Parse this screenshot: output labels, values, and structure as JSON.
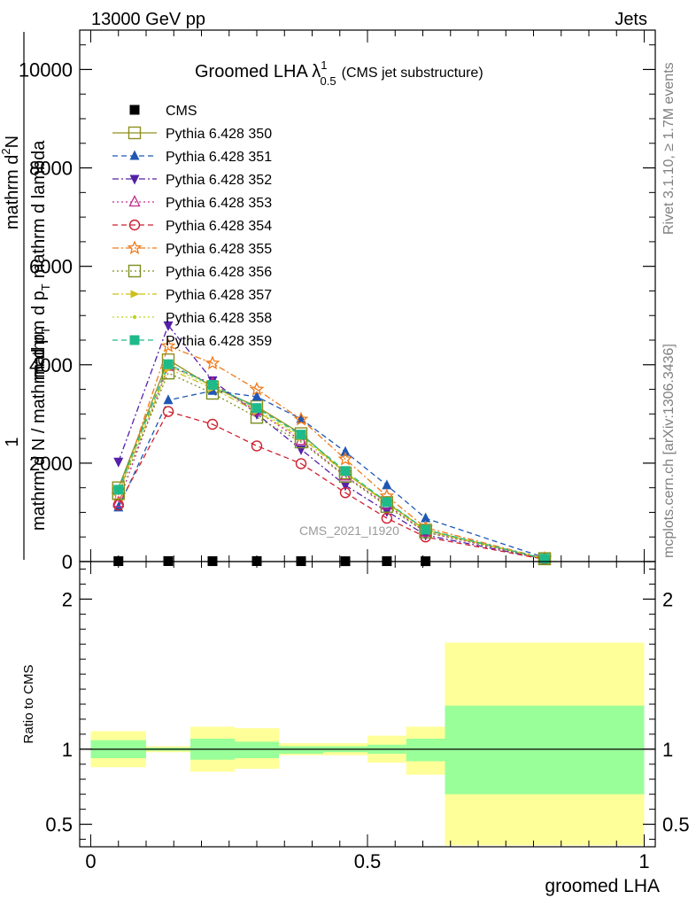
{
  "header": {
    "left": "13000 GeV pp",
    "right": "Jets"
  },
  "side": {
    "rivet": "Rivet 3.1.10, ≥ 1.7M events",
    "mcplots": "mcplots.cern.ch [arXiv:1306.3436]"
  },
  "watermark": "CMS_2021_I1920",
  "title": {
    "main": "Groomed LHA λ",
    "sup": "1",
    "sub": "0.5",
    "paren": "(CMS jet substructure)"
  },
  "ylabel": {
    "one": "1",
    "numerator": "mathrm d",
    "numerator_sup": "2",
    "numerator_tail": "N",
    "numerator_rest": "mathrm d p",
    "numerator_rest_sub": "T",
    "numerator_end": "mathrm d lambda",
    "denominator": "mathrm d N / mathrm d p",
    "denominator_sub": "T"
  },
  "ratio_ylabel": "Ratio to CMS",
  "xlabel": "groomed LHA",
  "chart_data": [
    {
      "type": "line",
      "title": "Groomed LHA λ^1_0.5 (CMS jet substructure)",
      "xlabel": "groomed LHA",
      "xlim": [
        -0.02,
        1.02
      ],
      "ylim": [
        0,
        10800
      ],
      "y_ticks": [
        0,
        2000,
        4000,
        6000,
        8000,
        10000
      ],
      "y_tick_labels": [
        "0",
        "2000",
        "4000",
        "6000",
        "8000",
        "10000"
      ],
      "x": [
        0.05,
        0.14,
        0.22,
        0.3,
        0.38,
        0.46,
        0.535,
        0.605,
        0.82
      ],
      "legend_position": "top-left",
      "series": [
        {
          "name": "CMS",
          "color": "#000000",
          "marker": "square-filled",
          "dash": "none",
          "values": [
            8,
            9,
            8,
            9,
            8,
            7,
            8,
            7,
            null
          ]
        },
        {
          "name": "Pythia 6.428 350",
          "color": "#8f8f1f",
          "marker": "square-open",
          "dash": "solid",
          "values": [
            1500,
            4100,
            3550,
            3150,
            2600,
            1800,
            1200,
            640,
            60
          ]
        },
        {
          "name": "Pythia 6.428 351",
          "color": "#1f57b4",
          "marker": "triangle-up-filled",
          "dash": "6,4",
          "values": [
            1100,
            3280,
            3470,
            3350,
            2900,
            2230,
            1550,
            880,
            80
          ]
        },
        {
          "name": "Pythia 6.428 352",
          "color": "#5520a8",
          "marker": "triangle-down-filled",
          "dash": "7,3,2,3",
          "values": [
            2030,
            4800,
            3680,
            3000,
            2280,
            1550,
            1020,
            540,
            50
          ]
        },
        {
          "name": "Pythia 6.428 353",
          "color": "#c02a8a",
          "marker": "triangle-up-open",
          "dash": "2,3",
          "values": [
            1200,
            3970,
            3620,
            3060,
            2460,
            1740,
            1150,
            600,
            55
          ]
        },
        {
          "name": "Pythia 6.428 354",
          "color": "#d01f2f",
          "marker": "circle-open",
          "dash": "6,4",
          "values": [
            1150,
            3050,
            2790,
            2350,
            1990,
            1400,
            880,
            500,
            45
          ]
        },
        {
          "name": "Pythia 6.428 355",
          "color": "#f07a1a",
          "marker": "star-open",
          "dash": "7,3,2,3",
          "values": [
            1350,
            4380,
            4030,
            3500,
            2890,
            2080,
            1330,
            690,
            62
          ]
        },
        {
          "name": "Pythia 6.428 356",
          "color": "#7a8f1f",
          "marker": "square-open",
          "dash": "2,3",
          "values": [
            1380,
            3830,
            3420,
            2930,
            2430,
            1730,
            1120,
            600,
            55
          ]
        },
        {
          "name": "Pythia 6.428 357",
          "color": "#cdbf1a",
          "marker": "triangle-right",
          "dash": "7,3,2,3",
          "values": [
            1420,
            3920,
            3520,
            3050,
            2520,
            1800,
            1180,
            630,
            57
          ]
        },
        {
          "name": "Pythia 6.428 358",
          "color": "#b6d91f",
          "marker": "dot",
          "dash": "2,3",
          "values": [
            1440,
            3970,
            3560,
            3090,
            2550,
            1820,
            1200,
            640,
            58
          ]
        },
        {
          "name": "Pythia 6.428 359",
          "color": "#1fba8a",
          "marker": "square-filled",
          "dash": "6,4",
          "values": [
            1460,
            4010,
            3590,
            3120,
            2580,
            1840,
            1210,
            650,
            58
          ]
        }
      ]
    },
    {
      "type": "area",
      "ylabel": "Ratio to CMS",
      "xlabel": "groomed LHA",
      "xlim": [
        -0.02,
        1.02
      ],
      "ylim": [
        0.35,
        2.25
      ],
      "y_ticks": [
        0.5,
        1,
        2
      ],
      "y_tick_labels": [
        "0.5",
        "1",
        "2"
      ],
      "x_ticks": [
        0,
        0.5,
        1
      ],
      "x_tick_labels": [
        "0",
        "0.5",
        "1"
      ],
      "reference_line": 1,
      "bins": [
        {
          "x0": 0.0,
          "x1": 0.1,
          "inner": [
            0.94,
            1.06
          ],
          "outer": [
            0.88,
            1.12
          ]
        },
        {
          "x0": 0.1,
          "x1": 0.18,
          "inner": [
            0.99,
            1.01
          ],
          "outer": [
            0.98,
            1.02
          ]
        },
        {
          "x0": 0.18,
          "x1": 0.26,
          "inner": [
            0.93,
            1.07
          ],
          "outer": [
            0.85,
            1.15
          ]
        },
        {
          "x0": 0.26,
          "x1": 0.34,
          "inner": [
            0.94,
            1.05
          ],
          "outer": [
            0.87,
            1.14
          ]
        },
        {
          "x0": 0.34,
          "x1": 0.42,
          "inner": [
            0.97,
            1.02
          ],
          "outer": [
            0.96,
            1.04
          ]
        },
        {
          "x0": 0.42,
          "x1": 0.5,
          "inner": [
            0.98,
            1.02
          ],
          "outer": [
            0.96,
            1.04
          ]
        },
        {
          "x0": 0.5,
          "x1": 0.57,
          "inner": [
            0.97,
            1.03
          ],
          "outer": [
            0.91,
            1.09
          ]
        },
        {
          "x0": 0.57,
          "x1": 0.64,
          "inner": [
            0.92,
            1.07
          ],
          "outer": [
            0.83,
            1.15
          ]
        },
        {
          "x0": 0.64,
          "x1": 1.0,
          "inner": [
            0.7,
            1.29
          ],
          "outer": [
            0.36,
            1.71
          ]
        }
      ],
      "colors": {
        "inner": "#99ff99",
        "outer": "#ffff99"
      }
    }
  ]
}
